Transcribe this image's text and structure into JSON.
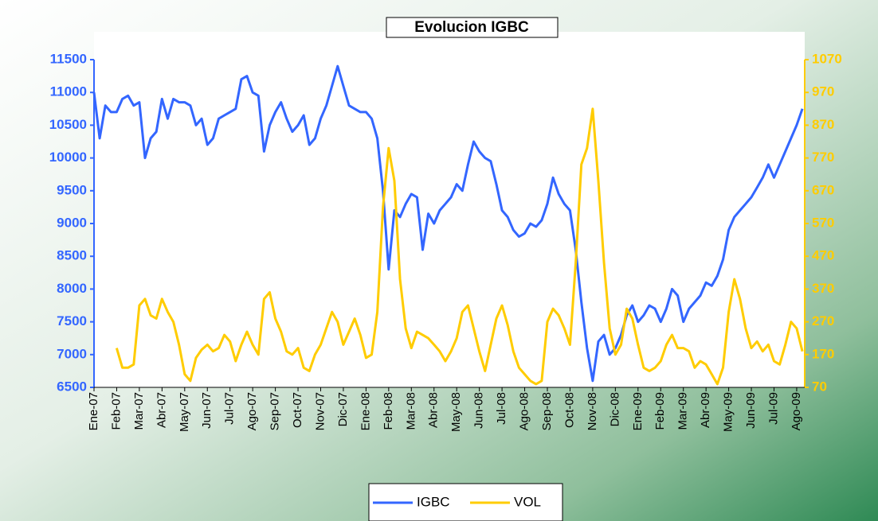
{
  "chart_data": {
    "type": "line",
    "title": "Evolucion IGBC",
    "categories": [
      "Ene-07",
      null,
      null,
      null,
      "Feb-07",
      null,
      null,
      null,
      "Mar-07",
      null,
      null,
      null,
      "Abr-07",
      null,
      null,
      null,
      "May-07",
      null,
      null,
      null,
      "Jun-07",
      null,
      null,
      null,
      "Jul-07",
      null,
      null,
      null,
      "Ago-07",
      null,
      null,
      null,
      "Sep-07",
      null,
      null,
      null,
      "Oct-07",
      null,
      null,
      null,
      "Nov-07",
      null,
      null,
      null,
      "Dic-07",
      null,
      null,
      null,
      "Ene-08",
      null,
      null,
      null,
      "Feb-08",
      null,
      null,
      null,
      "Mar-08",
      null,
      null,
      null,
      "Abr-08",
      null,
      null,
      null,
      "May-08",
      null,
      null,
      null,
      "Jun-08",
      null,
      null,
      null,
      "Jul-08",
      null,
      null,
      null,
      "Ago-08",
      null,
      null,
      null,
      "Sep-08",
      null,
      null,
      null,
      "Oct-08",
      null,
      null,
      null,
      "Nov-08",
      null,
      null,
      null,
      "Dic-08",
      null,
      null,
      null,
      "Ene-09",
      null,
      null,
      null,
      "Feb-09",
      null,
      null,
      null,
      "Mar-09",
      null,
      null,
      null,
      "Abr-09",
      null,
      null,
      null,
      "May-09",
      null,
      null,
      null,
      "Jun-09",
      null,
      null,
      null,
      "Jul-09",
      null,
      null,
      null,
      "Ago-09",
      null
    ],
    "series": [
      {
        "name": "IGBC",
        "color": "#3366ff",
        "values": [
          11000,
          10300,
          10800,
          10700,
          10700,
          10900,
          10950,
          10800,
          10850,
          10000,
          10300,
          10400,
          10900,
          10600,
          10900,
          10850,
          10850,
          10800,
          10500,
          10600,
          10200,
          10300,
          10600,
          10650,
          10700,
          10750,
          11200,
          11250,
          11000,
          10950,
          10100,
          10500,
          10700,
          10850,
          10600,
          10400,
          10500,
          10650,
          10200,
          10300,
          10600,
          10800,
          11100,
          11400,
          11100,
          10800,
          10750,
          10700,
          10700,
          10600,
          10300,
          9500,
          8300,
          9200,
          9100,
          9300,
          9450,
          9400,
          8600,
          9150,
          9000,
          9200,
          9300,
          9400,
          9600,
          9500,
          9900,
          10250,
          10100,
          10000,
          9950,
          9600,
          9200,
          9100,
          8900,
          8800,
          8850,
          9000,
          8950,
          9050,
          9300,
          9700,
          9450,
          9300,
          9200,
          8600,
          7800,
          7100,
          6600,
          7200,
          7300,
          7000,
          7100,
          7300,
          7600,
          7750,
          7500,
          7600,
          7750,
          7700,
          7500,
          7700,
          8000,
          7900,
          7500,
          7700,
          7800,
          7900,
          8100,
          8050,
          8200,
          8450,
          8900,
          9100,
          9200,
          9300,
          9400,
          9550,
          9700,
          9900,
          9700,
          9900,
          10100,
          10300,
          10500,
          10750
        ]
      },
      {
        "name": "VOL",
        "color": "#ffcc00",
        "axis": "y2",
        "values": [
          null,
          null,
          null,
          null,
          190,
          130,
          130,
          140,
          320,
          340,
          290,
          280,
          340,
          300,
          270,
          200,
          110,
          90,
          160,
          185,
          200,
          180,
          190,
          230,
          210,
          150,
          200,
          240,
          200,
          170,
          340,
          360,
          280,
          240,
          180,
          170,
          190,
          130,
          120,
          170,
          200,
          250,
          300,
          270,
          200,
          240,
          280,
          230,
          160,
          170,
          300,
          620,
          800,
          700,
          400,
          250,
          190,
          240,
          230,
          220,
          200,
          180,
          150,
          180,
          220,
          300,
          320,
          250,
          180,
          120,
          200,
          280,
          320,
          260,
          180,
          130,
          110,
          90,
          80,
          90,
          270,
          310,
          290,
          250,
          200,
          450,
          750,
          800,
          920,
          700,
          450,
          250,
          170,
          200,
          310,
          280,
          200,
          130,
          120,
          130,
          150,
          200,
          230,
          190,
          190,
          180,
          130,
          150,
          140,
          110,
          80,
          130,
          300,
          400,
          340,
          250,
          190,
          210,
          180,
          200,
          150,
          140,
          200,
          270,
          250,
          180
        ]
      }
    ],
    "ylim": [
      6500,
      11500
    ],
    "yticks": [
      6500,
      7000,
      7500,
      8000,
      8500,
      9000,
      9500,
      10000,
      10500,
      11000,
      11500
    ],
    "y2lim": [
      70,
      1070
    ],
    "y2ticks": [
      70,
      170,
      270,
      370,
      470,
      570,
      670,
      770,
      870,
      970,
      1070
    ],
    "legend": "bottom"
  }
}
